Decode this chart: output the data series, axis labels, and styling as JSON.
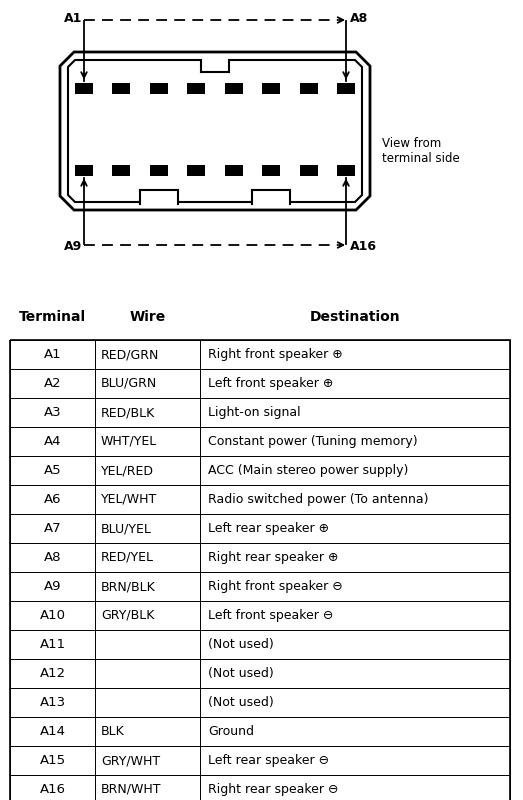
{
  "table_headers": [
    "Terminal",
    "Wire",
    "Destination"
  ],
  "rows": [
    [
      "A1",
      "RED/GRN",
      "Right front speaker ⊕"
    ],
    [
      "A2",
      "BLU/GRN",
      "Left front speaker ⊕"
    ],
    [
      "A3",
      "RED/BLK",
      "Light-on signal"
    ],
    [
      "A4",
      "WHT/YEL",
      "Constant power (Tuning memory)"
    ],
    [
      "A5",
      "YEL/RED",
      "ACC (Main stereo power supply)"
    ],
    [
      "A6",
      "YEL/WHT",
      "Radio switched power (To antenna)"
    ],
    [
      "A7",
      "BLU/YEL",
      "Left rear speaker ⊕"
    ],
    [
      "A8",
      "RED/YEL",
      "Right rear speaker ⊕"
    ],
    [
      "A9",
      "BRN/BLK",
      "Right front speaker ⊖"
    ],
    [
      "A10",
      "GRY/BLK",
      "Left front speaker ⊖"
    ],
    [
      "A11",
      "",
      "(Not used)"
    ],
    [
      "A12",
      "",
      "(Not used)"
    ],
    [
      "A13",
      "",
      "(Not used)"
    ],
    [
      "A14",
      "BLK",
      "Ground"
    ],
    [
      "A15",
      "GRY/WHT",
      "Left rear speaker ⊖"
    ],
    [
      "A16",
      "BRN/WHT",
      "Right rear speaker ⊖"
    ]
  ],
  "bg_color": "#ffffff"
}
